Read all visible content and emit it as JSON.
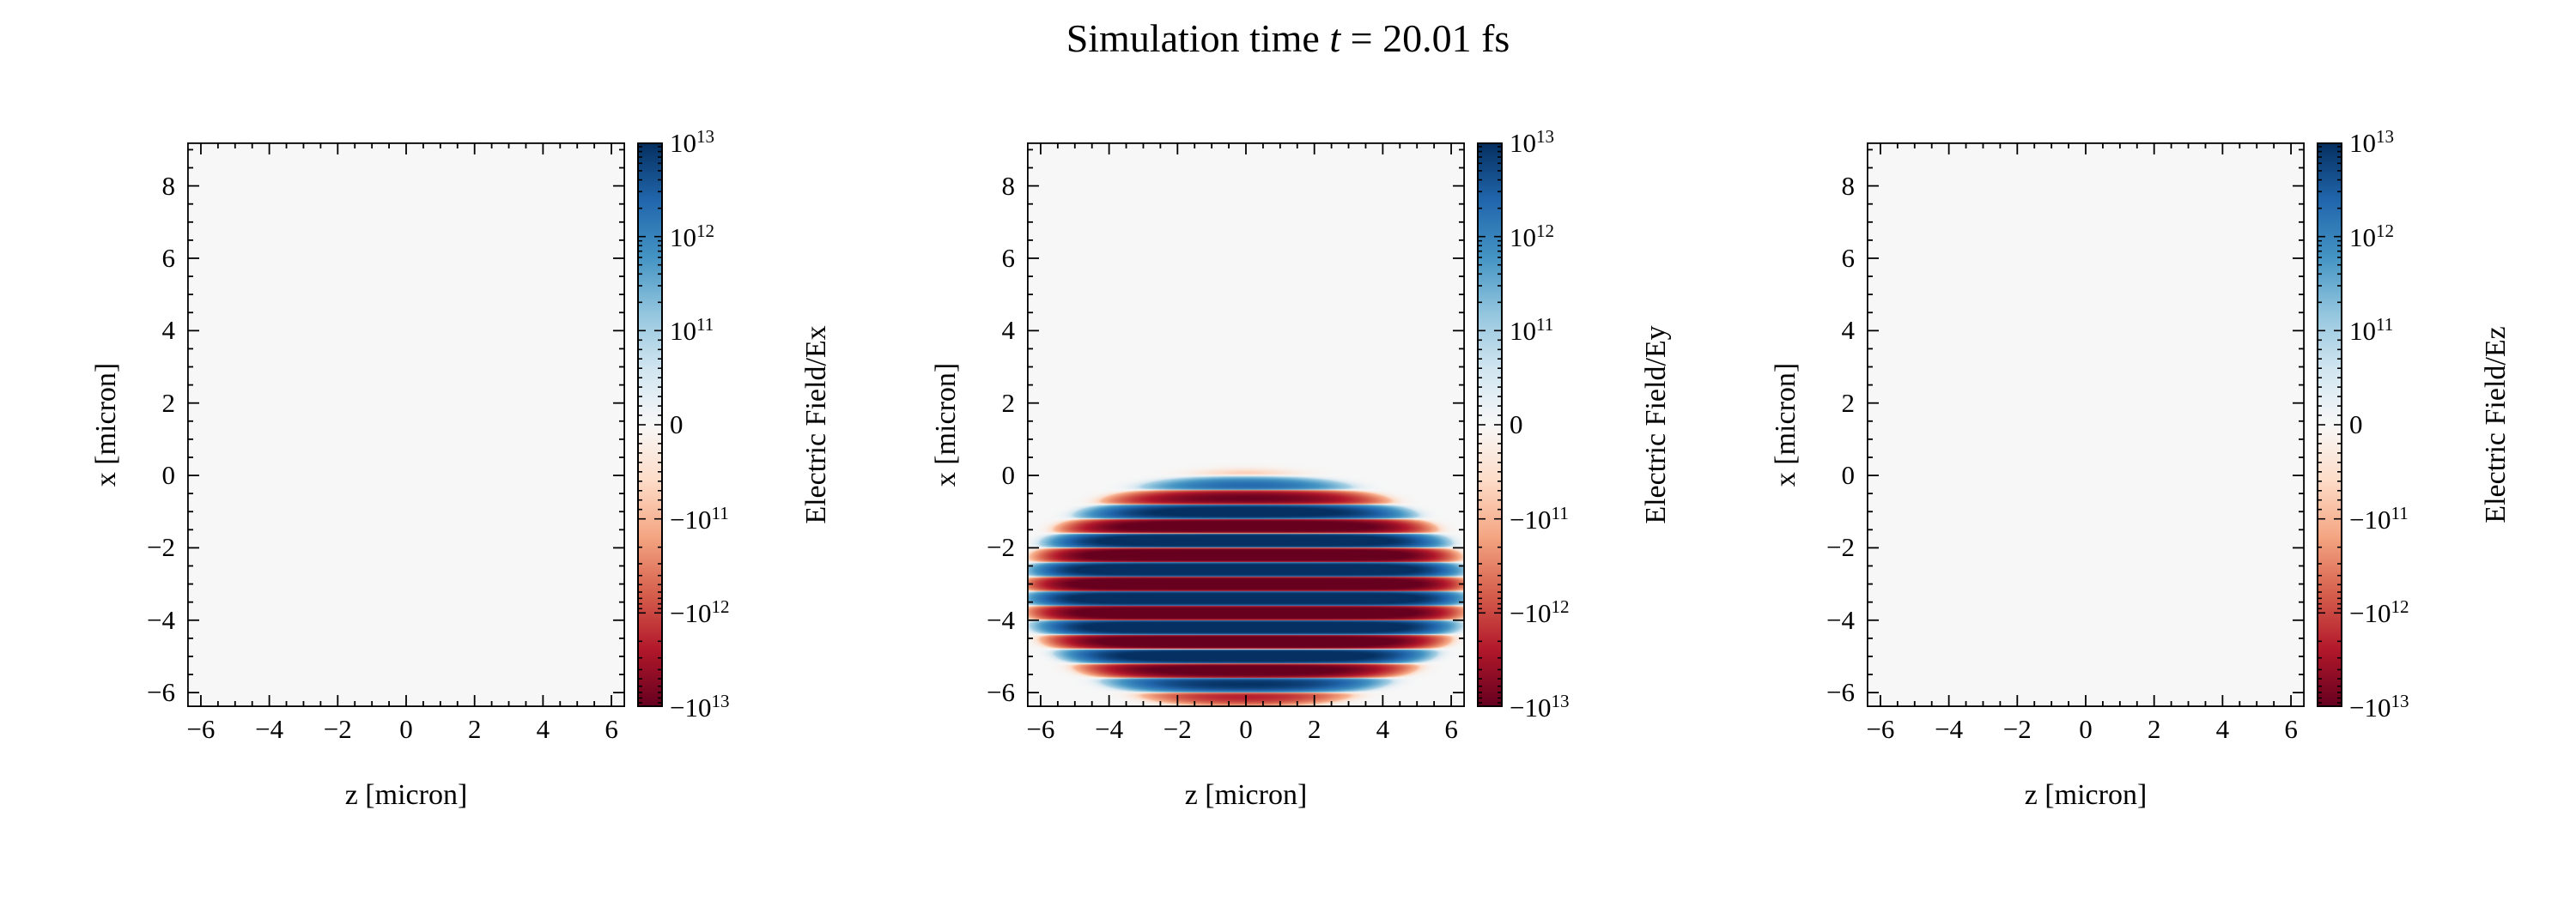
{
  "title": {
    "prefix": "Simulation time ",
    "math_var": "t",
    "suffix": " = 20.01 fs"
  },
  "colormap": {
    "name": "RdBu",
    "anchors": [
      "#67001f",
      "#b2182b",
      "#d6604d",
      "#f4a582",
      "#fddbc7",
      "#f7f7f7",
      "#d1e5f0",
      "#92c5de",
      "#4393c3",
      "#2166ac",
      "#053061"
    ]
  },
  "norm": {
    "type": "symlog",
    "linthresh": 100000000000.0,
    "vmin": -10000000000000.0,
    "vmax": 10000000000000.0,
    "decades": 2
  },
  "chart_data": [
    {
      "type": "heatmap",
      "field": "Ex",
      "xlabel": "z [micron]",
      "ylabel": "x [micron]",
      "xlim": [
        -6.4,
        6.4
      ],
      "ylim": [
        -6.4,
        9.2
      ],
      "xticks": [
        -6,
        -4,
        -2,
        0,
        2,
        4,
        6
      ],
      "yticks": [
        -6,
        -4,
        -2,
        0,
        2,
        4,
        6,
        8
      ],
      "minor_step": 0.5,
      "colorbar_label": "Electric Field/Ex",
      "colorbar_ticks": [
        {
          "value": 10000000000000.0,
          "label": "10^13"
        },
        {
          "value": 1000000000000.0,
          "label": "10^12"
        },
        {
          "value": 100000000000.0,
          "label": "10^11"
        },
        {
          "value": 0,
          "label": "0"
        },
        {
          "value": -100000000000.0,
          "label": "-10^11"
        },
        {
          "value": -1000000000000.0,
          "label": "-10^12"
        },
        {
          "value": -10000000000000.0,
          "label": "-10^13"
        }
      ],
      "field_model": {
        "model": "zero"
      }
    },
    {
      "type": "heatmap",
      "field": "Ey",
      "xlabel": "z [micron]",
      "ylabel": "x [micron]",
      "xlim": [
        -6.4,
        6.4
      ],
      "ylim": [
        -6.4,
        9.2
      ],
      "xticks": [
        -6,
        -4,
        -2,
        0,
        2,
        4,
        6
      ],
      "yticks": [
        -6,
        -4,
        -2,
        0,
        2,
        4,
        6,
        8
      ],
      "minor_step": 0.5,
      "colorbar_label": "Electric Field/Ey",
      "colorbar_ticks": [
        {
          "value": 10000000000000.0,
          "label": "10^13"
        },
        {
          "value": 1000000000000.0,
          "label": "10^12"
        },
        {
          "value": 100000000000.0,
          "label": "10^11"
        },
        {
          "value": 0,
          "label": "0"
        },
        {
          "value": -100000000000.0,
          "label": "-10^11"
        },
        {
          "value": -1000000000000.0,
          "label": "-10^12"
        },
        {
          "value": -10000000000000.0,
          "label": "-10^13"
        }
      ],
      "field_model": {
        "model": "pulse",
        "amplitude": 20000000000000.0,
        "wavelength": 0.8,
        "phase_deg": 180,
        "center_x": -3.2,
        "center_z": 0,
        "halfwidth_x": 3.0,
        "halfwidth_z": 6.0,
        "power": 8,
        "falloff": 2.5
      }
    },
    {
      "type": "heatmap",
      "field": "Ez",
      "xlabel": "z [micron]",
      "ylabel": "x [micron]",
      "xlim": [
        -6.4,
        6.4
      ],
      "ylim": [
        -6.4,
        9.2
      ],
      "xticks": [
        -6,
        -4,
        -2,
        0,
        2,
        4,
        6
      ],
      "yticks": [
        -6,
        -4,
        -2,
        0,
        2,
        4,
        6,
        8
      ],
      "minor_step": 0.5,
      "colorbar_label": "Electric Field/Ez",
      "colorbar_ticks": [
        {
          "value": 10000000000000.0,
          "label": "10^13"
        },
        {
          "value": 1000000000000.0,
          "label": "10^12"
        },
        {
          "value": 100000000000.0,
          "label": "10^11"
        },
        {
          "value": 0,
          "label": "0"
        },
        {
          "value": -100000000000.0,
          "label": "-10^11"
        },
        {
          "value": -1000000000000.0,
          "label": "-10^12"
        },
        {
          "value": -10000000000000.0,
          "label": "-10^13"
        }
      ],
      "field_model": {
        "model": "zero"
      }
    }
  ]
}
